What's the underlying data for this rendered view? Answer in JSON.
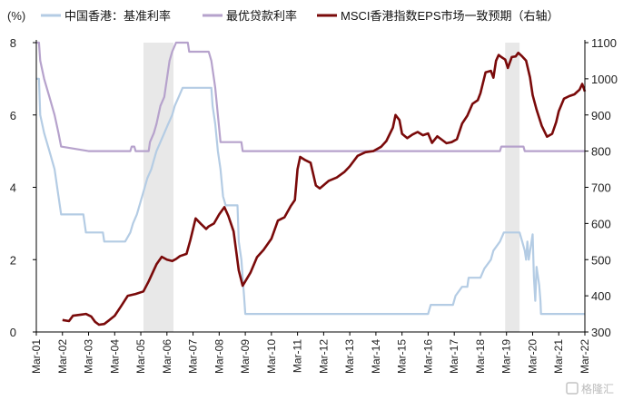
{
  "chart_data": {
    "type": "line",
    "unit_left": "(%)",
    "legend": [
      {
        "name": "中国香港：基准利率",
        "color": "#b4cce4"
      },
      {
        "name": "最优贷款利率",
        "color": "#b6a2cc"
      },
      {
        "name": "MSCI香港指数EPS市场一致预期（右轴）",
        "color": "#7a0a0a"
      }
    ],
    "x_ticks": [
      "Mar-01",
      "Mar-02",
      "Mar-03",
      "Mar-04",
      "Mar-05",
      "Mar-06",
      "Mar-07",
      "Mar-08",
      "Mar-09",
      "Mar-10",
      "Mar-11",
      "Mar-12",
      "Mar-13",
      "Mar-14",
      "Mar-15",
      "Mar-16",
      "Mar-17",
      "Mar-18",
      "Mar-19",
      "Mar-20",
      "Mar-21",
      "Mar-22"
    ],
    "x_range": [
      2001.0,
      2022.0
    ],
    "left_axis": {
      "ticks": [
        "0",
        "2",
        "4",
        "6",
        "8"
      ],
      "range": [
        0,
        8
      ]
    },
    "right_axis": {
      "ticks": [
        "300",
        "400",
        "500",
        "600",
        "700",
        "800",
        "900",
        "1000",
        "1100"
      ],
      "range": [
        300,
        1100
      ]
    },
    "shaded_periods": [
      [
        2005.1,
        2006.25
      ],
      [
        2018.95,
        2019.5
      ]
    ],
    "series": [
      {
        "name": "中国香港：基准利率",
        "axis": "left",
        "points": [
          [
            2001.0,
            7.0
          ],
          [
            2001.1,
            7.0
          ],
          [
            2001.15,
            6.0
          ],
          [
            2001.3,
            5.5
          ],
          [
            2001.5,
            5.0
          ],
          [
            2001.7,
            4.5
          ],
          [
            2001.85,
            3.75
          ],
          [
            2001.95,
            3.25
          ],
          [
            2002.3,
            3.25
          ],
          [
            2002.6,
            3.25
          ],
          [
            2002.8,
            3.25
          ],
          [
            2002.9,
            2.75
          ],
          [
            2003.3,
            2.75
          ],
          [
            2003.55,
            2.75
          ],
          [
            2003.6,
            2.5
          ],
          [
            2004.4,
            2.5
          ],
          [
            2004.6,
            2.75
          ],
          [
            2004.7,
            3.0
          ],
          [
            2004.85,
            3.25
          ],
          [
            2004.95,
            3.5
          ],
          [
            2005.05,
            3.75
          ],
          [
            2005.15,
            4.0
          ],
          [
            2005.25,
            4.25
          ],
          [
            2005.4,
            4.5
          ],
          [
            2005.5,
            4.75
          ],
          [
            2005.6,
            5.0
          ],
          [
            2005.75,
            5.25
          ],
          [
            2005.9,
            5.5
          ],
          [
            2006.05,
            5.75
          ],
          [
            2006.2,
            6.0
          ],
          [
            2006.3,
            6.25
          ],
          [
            2006.45,
            6.5
          ],
          [
            2006.6,
            6.75
          ],
          [
            2007.7,
            6.75
          ],
          [
            2007.75,
            6.25
          ],
          [
            2007.85,
            5.75
          ],
          [
            2007.95,
            5.0
          ],
          [
            2008.05,
            4.5
          ],
          [
            2008.15,
            3.75
          ],
          [
            2008.25,
            3.5
          ],
          [
            2008.7,
            3.5
          ],
          [
            2008.75,
            2.5
          ],
          [
            2008.85,
            2.0
          ],
          [
            2008.9,
            1.5
          ],
          [
            2008.95,
            1.0
          ],
          [
            2009.0,
            0.5
          ],
          [
            2016.0,
            0.5
          ],
          [
            2016.1,
            0.75
          ],
          [
            2016.95,
            0.75
          ],
          [
            2017.05,
            1.0
          ],
          [
            2017.3,
            1.25
          ],
          [
            2017.5,
            1.25
          ],
          [
            2017.55,
            1.5
          ],
          [
            2018.0,
            1.5
          ],
          [
            2018.15,
            1.75
          ],
          [
            2018.4,
            2.0
          ],
          [
            2018.5,
            2.25
          ],
          [
            2018.75,
            2.5
          ],
          [
            2018.9,
            2.75
          ],
          [
            2019.5,
            2.75
          ],
          [
            2019.6,
            2.5
          ],
          [
            2019.7,
            2.25
          ],
          [
            2019.75,
            2.0
          ],
          [
            2019.8,
            2.5
          ],
          [
            2019.85,
            2.0
          ],
          [
            2020.0,
            2.7
          ],
          [
            2020.05,
            1.5
          ],
          [
            2020.1,
            0.86
          ],
          [
            2020.15,
            1.8
          ],
          [
            2020.25,
            1.3
          ],
          [
            2020.3,
            0.86
          ],
          [
            2020.32,
            0.5
          ],
          [
            2022.0,
            0.5
          ]
        ]
      },
      {
        "name": "最优贷款利率",
        "axis": "left",
        "points": [
          [
            2001.0,
            8.0
          ],
          [
            2001.1,
            8.0
          ],
          [
            2001.15,
            7.5
          ],
          [
            2001.3,
            7.0
          ],
          [
            2001.5,
            6.5
          ],
          [
            2001.7,
            6.0
          ],
          [
            2001.85,
            5.5
          ],
          [
            2001.95,
            5.125
          ],
          [
            2003.0,
            5.0
          ],
          [
            2004.6,
            5.0
          ],
          [
            2004.65,
            5.125
          ],
          [
            2004.75,
            5.125
          ],
          [
            2004.8,
            5.0
          ],
          [
            2005.3,
            5.0
          ],
          [
            2005.35,
            5.25
          ],
          [
            2005.5,
            5.5
          ],
          [
            2005.6,
            5.75
          ],
          [
            2005.75,
            6.25
          ],
          [
            2005.9,
            6.5
          ],
          [
            2006.0,
            7.0
          ],
          [
            2006.1,
            7.5
          ],
          [
            2006.2,
            7.75
          ],
          [
            2006.35,
            8.0
          ],
          [
            2006.8,
            8.0
          ],
          [
            2006.85,
            7.75
          ],
          [
            2007.6,
            7.75
          ],
          [
            2007.7,
            7.5
          ],
          [
            2007.8,
            7.0
          ],
          [
            2007.85,
            6.75
          ],
          [
            2007.95,
            6.0
          ],
          [
            2008.05,
            5.25
          ],
          [
            2008.85,
            5.25
          ],
          [
            2008.9,
            5.0
          ],
          [
            2018.75,
            5.0
          ],
          [
            2018.8,
            5.125
          ],
          [
            2019.65,
            5.125
          ],
          [
            2019.7,
            5.0
          ],
          [
            2022.0,
            5.0
          ]
        ]
      },
      {
        "name": "MSCI香港指数EPS市场一致预期（右轴）",
        "axis": "right",
        "points": [
          [
            2002.0,
            333
          ],
          [
            2002.25,
            330
          ],
          [
            2002.4,
            345
          ],
          [
            2002.7,
            348
          ],
          [
            2002.9,
            350
          ],
          [
            2003.1,
            343
          ],
          [
            2003.25,
            328
          ],
          [
            2003.4,
            320
          ],
          [
            2003.6,
            322
          ],
          [
            2003.8,
            333
          ],
          [
            2004.0,
            345
          ],
          [
            2004.25,
            372
          ],
          [
            2004.5,
            400
          ],
          [
            2004.8,
            405
          ],
          [
            2005.1,
            412
          ],
          [
            2005.3,
            440
          ],
          [
            2005.6,
            487
          ],
          [
            2005.8,
            508
          ],
          [
            2006.0,
            500
          ],
          [
            2006.2,
            496
          ],
          [
            2006.35,
            502
          ],
          [
            2006.5,
            510
          ],
          [
            2006.75,
            516
          ],
          [
            2006.9,
            555
          ],
          [
            2007.1,
            614
          ],
          [
            2007.3,
            599
          ],
          [
            2007.5,
            585
          ],
          [
            2007.6,
            592
          ],
          [
            2007.8,
            600
          ],
          [
            2008.0,
            625
          ],
          [
            2008.2,
            645
          ],
          [
            2008.35,
            621
          ],
          [
            2008.55,
            578
          ],
          [
            2008.75,
            470
          ],
          [
            2008.9,
            428
          ],
          [
            2009.0,
            440
          ],
          [
            2009.2,
            464
          ],
          [
            2009.45,
            507
          ],
          [
            2009.7,
            527
          ],
          [
            2010.0,
            558
          ],
          [
            2010.25,
            608
          ],
          [
            2010.5,
            617
          ],
          [
            2010.75,
            649
          ],
          [
            2010.9,
            665
          ],
          [
            2011.0,
            750
          ],
          [
            2011.1,
            784
          ],
          [
            2011.3,
            775
          ],
          [
            2011.5,
            768
          ],
          [
            2011.7,
            705
          ],
          [
            2011.85,
            697
          ],
          [
            2012.0,
            706
          ],
          [
            2012.2,
            718
          ],
          [
            2012.5,
            727
          ],
          [
            2012.8,
            743
          ],
          [
            2013.0,
            758
          ],
          [
            2013.3,
            787
          ],
          [
            2013.6,
            797
          ],
          [
            2013.9,
            800
          ],
          [
            2014.2,
            812
          ],
          [
            2014.4,
            828
          ],
          [
            2014.65,
            865
          ],
          [
            2014.75,
            900
          ],
          [
            2014.9,
            886
          ],
          [
            2015.0,
            848
          ],
          [
            2015.2,
            836
          ],
          [
            2015.4,
            846
          ],
          [
            2015.6,
            853
          ],
          [
            2015.8,
            844
          ],
          [
            2016.0,
            849
          ],
          [
            2016.15,
            823
          ],
          [
            2016.35,
            841
          ],
          [
            2016.5,
            833
          ],
          [
            2016.7,
            822
          ],
          [
            2016.9,
            825
          ],
          [
            2017.1,
            833
          ],
          [
            2017.3,
            876
          ],
          [
            2017.5,
            898
          ],
          [
            2017.7,
            931
          ],
          [
            2017.9,
            941
          ],
          [
            2018.0,
            960
          ],
          [
            2018.2,
            1018
          ],
          [
            2018.4,
            1022
          ],
          [
            2018.5,
            1003
          ],
          [
            2018.6,
            1050
          ],
          [
            2018.7,
            1066
          ],
          [
            2018.8,
            1060
          ],
          [
            2018.95,
            1053
          ],
          [
            2019.05,
            1030
          ],
          [
            2019.2,
            1060
          ],
          [
            2019.35,
            1062
          ],
          [
            2019.45,
            1072
          ],
          [
            2019.6,
            1062
          ],
          [
            2019.75,
            1050
          ],
          [
            2019.9,
            1004
          ],
          [
            2020.0,
            955
          ],
          [
            2020.15,
            915
          ],
          [
            2020.35,
            870
          ],
          [
            2020.55,
            840
          ],
          [
            2020.75,
            848
          ],
          [
            2020.9,
            880
          ],
          [
            2021.0,
            910
          ],
          [
            2021.2,
            945
          ],
          [
            2021.4,
            952
          ],
          [
            2021.6,
            957
          ],
          [
            2021.8,
            970
          ],
          [
            2021.9,
            986
          ],
          [
            2022.0,
            965
          ]
        ]
      }
    ]
  },
  "watermark": {
    "text": "格隆汇"
  }
}
